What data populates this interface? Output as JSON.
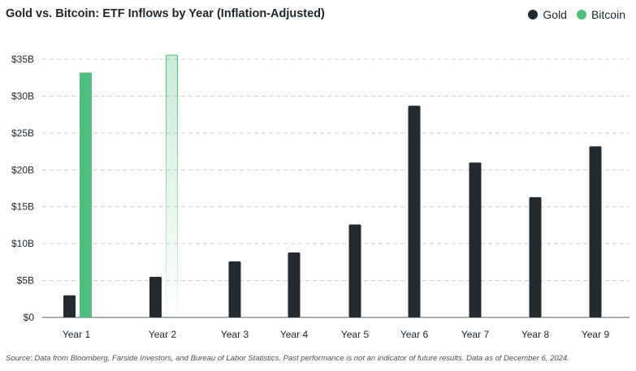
{
  "chart_data": {
    "type": "bar",
    "title": "Gold vs. Bitcoin: ETF Inflows by Year (Inflation-Adjusted)",
    "categories": [
      "Year 1",
      "Year 2",
      "Year 3",
      "Year 4",
      "Year 5",
      "Year 6",
      "Year 7",
      "Year 8",
      "Year 9"
    ],
    "series": [
      {
        "name": "Gold",
        "color": "#232a30",
        "values": [
          3,
          5.5,
          7.6,
          8.8,
          12.6,
          28.7,
          21,
          16.3,
          23.2
        ]
      },
      {
        "name": "Bitcoin",
        "color": "#4cc07a",
        "values": [
          33.2,
          35.6,
          null,
          null,
          null,
          null,
          null,
          null,
          null
        ],
        "projected": [
          false,
          true,
          false,
          false,
          false,
          false,
          false,
          false,
          false
        ]
      }
    ],
    "yticks": [
      "$0",
      "$5B",
      "$10B",
      "$15B",
      "$20B",
      "$25B",
      "$30B",
      "$35B"
    ],
    "ytick_values": [
      0,
      5,
      10,
      15,
      20,
      25,
      30,
      35
    ],
    "ylim": [
      0,
      35
    ],
    "unit": "$B",
    "grid": true,
    "legend_position": "top-right"
  },
  "legend": {
    "gold": "Gold",
    "bitcoin": "Bitcoin"
  },
  "source": "Source: Data from Bloomberg, Farside Investors, and Bureau of Labor Statistics. Past performance is not an indicator of future results. Data as of December 6, 2024."
}
